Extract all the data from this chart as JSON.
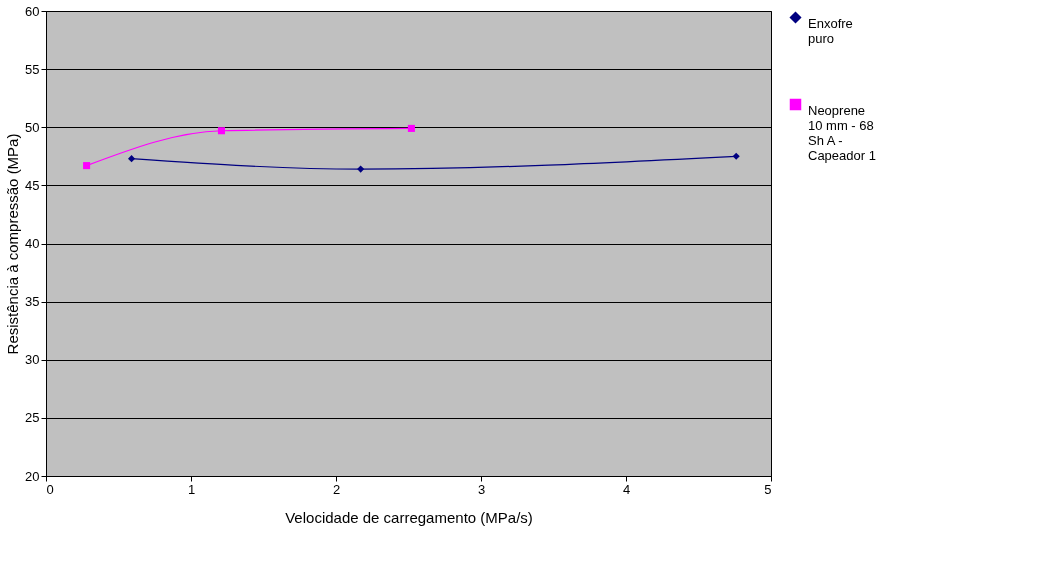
{
  "chart_data": {
    "type": "line",
    "xlabel": "Velocidade de carregamento (MPa/s)",
    "ylabel": "Resistência à compressão (MPa)",
    "xlim": [
      0,
      5
    ],
    "xticks": [
      0,
      1,
      2,
      3,
      4,
      5
    ],
    "ylim": [
      20,
      60
    ],
    "yticks": [
      20,
      25,
      30,
      35,
      40,
      45,
      50,
      55,
      60
    ],
    "grid": "y",
    "legend": "right",
    "series": [
      {
        "name": "Enxofre puro",
        "color": "#000080",
        "marker": "diamond",
        "x": [
          0.59,
          2.17,
          4.76
        ],
        "values": [
          47.3,
          46.4,
          47.5
        ]
      },
      {
        "name": "Neoprene 10 mm - 68 Sh A - Capeador 1",
        "color": "#ff00ff",
        "marker": "square",
        "x": [
          0.28,
          1.21,
          2.52
        ],
        "values": [
          46.7,
          49.7,
          49.9
        ]
      }
    ]
  }
}
